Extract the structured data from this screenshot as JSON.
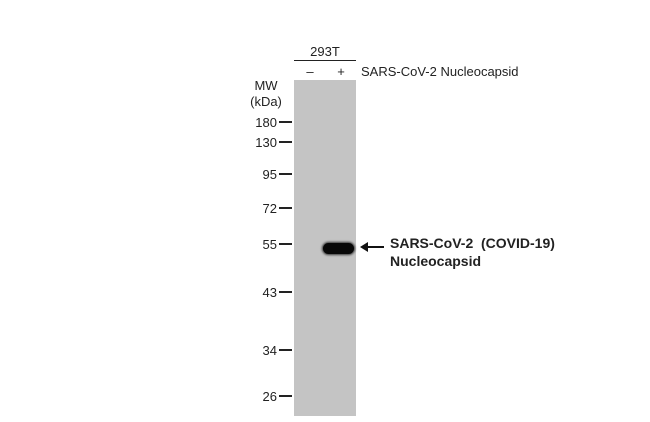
{
  "cell_line": "293T",
  "lanes": [
    {
      "sign": "–"
    },
    {
      "sign": "+"
    }
  ],
  "sample_label": "SARS-CoV-2 Nucleocapsid",
  "mw": {
    "title_line1": "MW",
    "title_line2": "(kDa)"
  },
  "markers": [
    "180",
    "130",
    "95",
    "72",
    "55",
    "43",
    "34",
    "26"
  ],
  "target": {
    "line1": "SARS-CoV-2  (COVID-19)",
    "line2": "Nucleocapsid"
  },
  "colors": {
    "membrane": "#c4c4c4",
    "band": "#080808"
  }
}
